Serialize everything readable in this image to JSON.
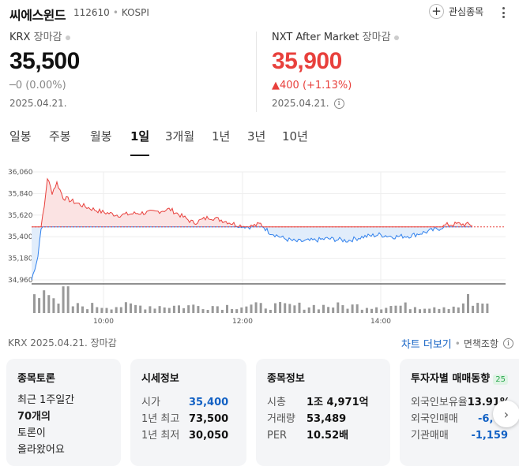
{
  "stock": {
    "name": "씨에스윈드",
    "code": "112610",
    "exchange": "KOSPI",
    "watchlist_label": "관심종목"
  },
  "krx": {
    "market": "KRX",
    "status": "장마감",
    "price": "35,500",
    "change": "─0 (0.00%)",
    "date": "2025.04.21."
  },
  "nxt": {
    "market": "NXT After Market",
    "status": "장마감",
    "price": "35,900",
    "change": "▲400 (+1.13%)",
    "date": "2025.04.21."
  },
  "tabs": [
    {
      "label": "일봉",
      "active": false
    },
    {
      "label": "주봉",
      "active": false
    },
    {
      "label": "월봉",
      "active": false
    },
    {
      "label": "1일",
      "active": true
    },
    {
      "label": "3개월",
      "active": false
    },
    {
      "label": "1년",
      "active": false
    },
    {
      "label": "3년",
      "active": false
    },
    {
      "label": "10년",
      "active": false
    }
  ],
  "chart_data": {
    "type": "area",
    "y_ticks": [
      "36,060",
      "35,840",
      "35,620",
      "35,400",
      "35,180",
      "34,960"
    ],
    "x_ticks": [
      "10:00",
      "12:00",
      "14:00"
    ],
    "ylim": [
      34960,
      36060
    ],
    "baseline": 35500,
    "colors": {
      "up": "#e8403c",
      "up_fill": "#fbe3e3",
      "down": "#2f80ed",
      "down_fill": "#e1edfb",
      "volume": "#999999"
    },
    "volume_note": "volume bars shown below price line"
  },
  "footer": {
    "info": "KRX  2025.04.21. 장마감",
    "chart_more": "차트 더보기",
    "loan_link": "면책조항"
  },
  "cards": {
    "discussion": {
      "title": "종목토론",
      "lines": [
        "최근 1주일간",
        "70개의",
        "토론이",
        "올라왔어요"
      ]
    },
    "quote": {
      "title": "시세정보",
      "rows": [
        {
          "k": "시가",
          "v": "35,400"
        },
        {
          "k": "1년 최고",
          "v": "73,500"
        },
        {
          "k": "1년 최저",
          "v": "30,050"
        }
      ]
    },
    "info": {
      "title": "종목정보",
      "rows": [
        {
          "k": "시총",
          "v": "1조 4,971억"
        },
        {
          "k": "거래량",
          "v": "53,489"
        },
        {
          "k": "PER",
          "v": "10.52배"
        }
      ]
    },
    "investor": {
      "title": "투자자별 매매동향",
      "badge": "25",
      "rows": [
        {
          "k": "외국인보유율",
          "v": "13.91%"
        },
        {
          "k": "외국인매매",
          "v": "-6,"
        },
        {
          "k": "기관매매",
          "v": "-1,159"
        }
      ]
    }
  }
}
